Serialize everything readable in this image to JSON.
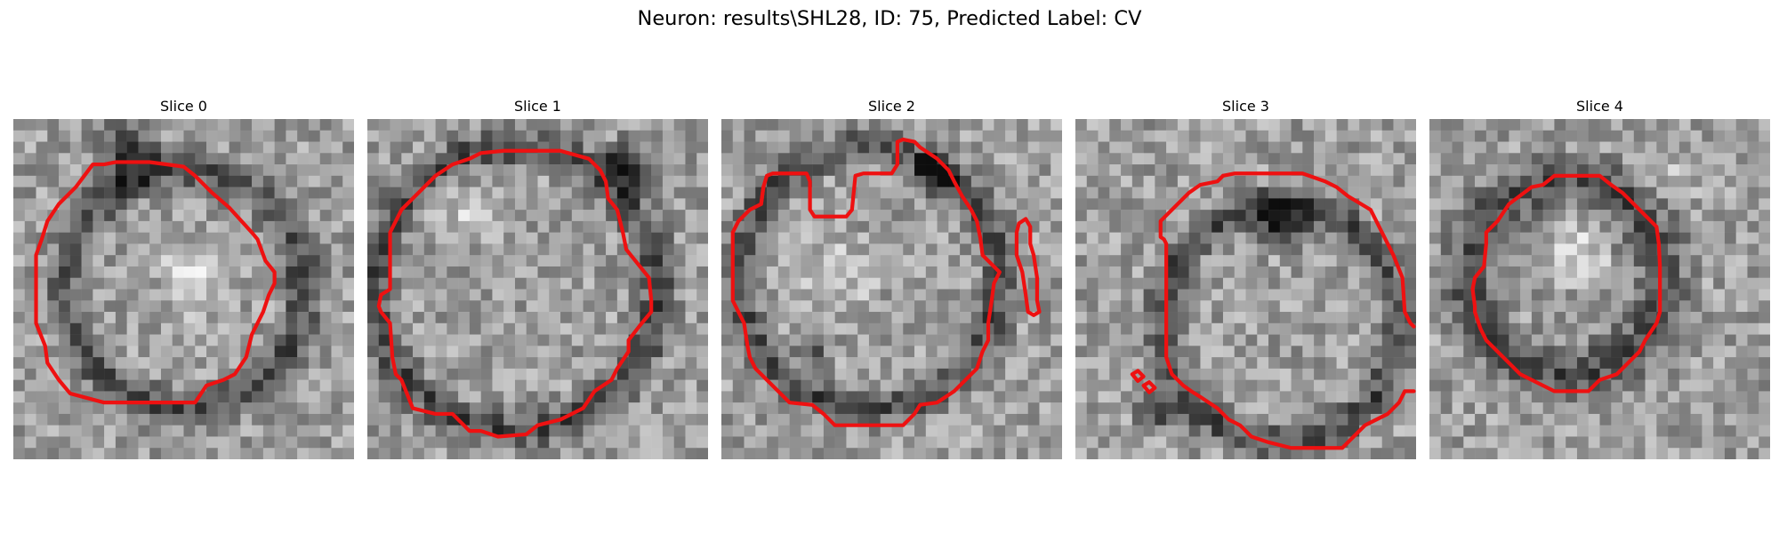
{
  "figure": {
    "title": "Neuron: results\\SHL28, ID: 75, Predicted Label: CV"
  },
  "colors": {
    "contour": "#ee1111",
    "background": "#ffffff"
  },
  "panels": [
    {
      "title": "Slice 0",
      "seed": 11,
      "image_description": "grayscale EM patch, round cell body with dark membrane ring and bright textured interior"
    },
    {
      "title": "Slice 1",
      "seed": 23,
      "image_description": "grayscale EM patch, large round cell with dark upper-right region"
    },
    {
      "title": "Slice 2",
      "seed": 37,
      "image_description": "grayscale EM patch, bright cell body with dark curved membrane bands and a notch at top"
    },
    {
      "title": "Slice 3",
      "seed": 41,
      "image_description": "grayscale EM patch, cell with dark membrane arc across the top and mottled interior"
    },
    {
      "title": "Slice 4",
      "seed": 53,
      "image_description": "grayscale EM patch, small round cell ring with bright center"
    }
  ]
}
